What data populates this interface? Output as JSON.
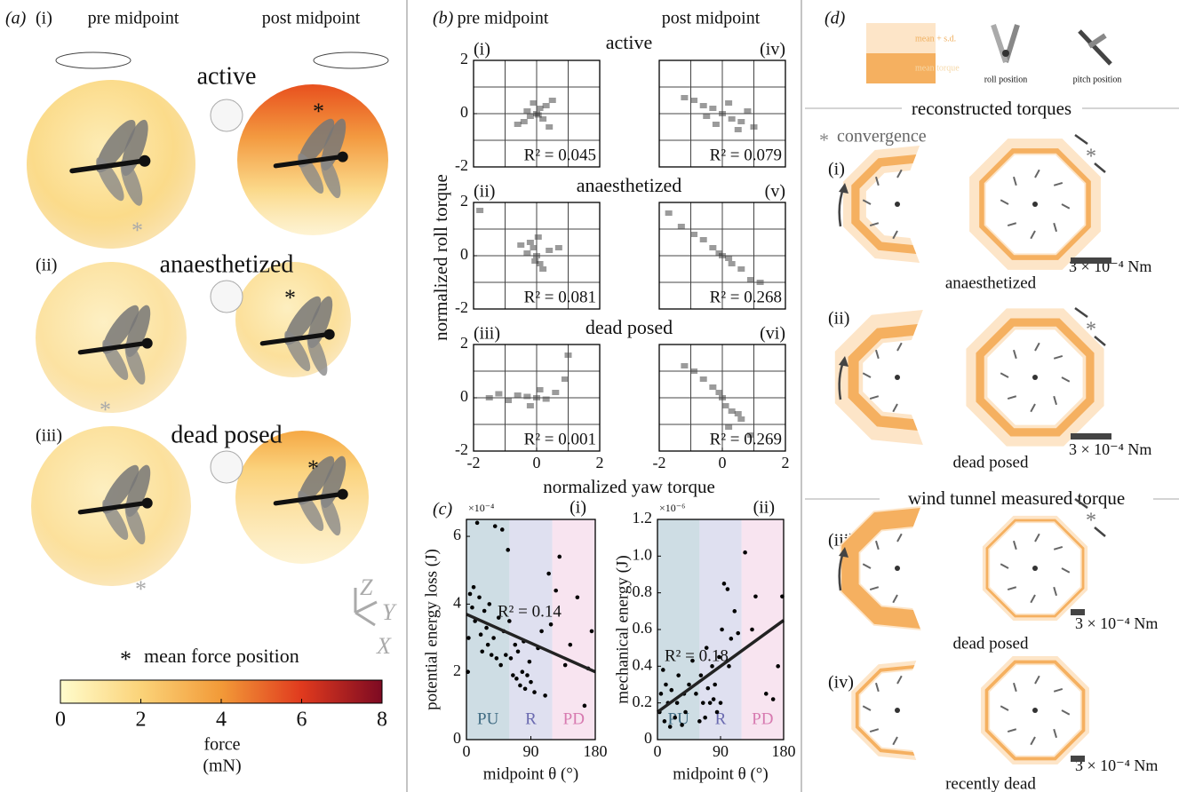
{
  "panel_a": {
    "label": "(a)",
    "pre": "pre midpoint",
    "post": "post midpoint",
    "rows": [
      {
        "label": "(i)",
        "title": "active"
      },
      {
        "label": "(ii)",
        "title": "anaesthetized"
      },
      {
        "label": "(iii)",
        "title": "dead posed"
      }
    ],
    "symbol": "*",
    "legend": "mean force position",
    "axes": [
      "Z",
      "Y",
      "X"
    ]
  },
  "panel_b": {
    "label": "(b)",
    "pre": "pre midpoint",
    "post": "post midpoint",
    "rows": [
      "active",
      "anaesthetized",
      "dead posed"
    ],
    "xlabel": "normalized yaw torque",
    "ylabel": "normalized roll torque"
  },
  "panel_c": {
    "label": "(c)"
  },
  "panel_d": {
    "label": "(d)",
    "legend": [
      "mean + s.d.",
      "mean torque"
    ],
    "icons": [
      "roll position",
      "pitch position"
    ],
    "sections": [
      "reconstructed torques",
      "wind tunnel measured torque"
    ],
    "symbol": "*",
    "convergence": "convergence",
    "rows": [
      {
        "label": "(i)",
        "name": "anaesthetized"
      },
      {
        "label": "(ii)",
        "name": "dead posed"
      },
      {
        "label": "(iii)",
        "name": "dead posed"
      },
      {
        "label": "(iv)",
        "name": "recently dead"
      }
    ],
    "scale": "3 × 10⁻⁴ Nm"
  },
  "chart_data": [
    {
      "type": "colorbar",
      "xlim": [
        0,
        8
      ],
      "xticks": [
        0,
        2,
        4,
        6,
        8
      ],
      "colors": [
        "#fffccc",
        "#fbd379",
        "#f29a38",
        "#e03a1e",
        "#7d0a22"
      ],
      "label": "force",
      "unit": "(mN)"
    },
    {
      "type": "hist2d",
      "label": "(i)",
      "annotation": "R² = 0.045",
      "xlim": [
        -2,
        2
      ],
      "ylim": [
        -2,
        2
      ],
      "yticks": [
        -2,
        0,
        2
      ],
      "xgrid": [
        -1,
        0,
        1
      ],
      "ygrid": [
        -1,
        0,
        1
      ],
      "points": {
        "x": [
          0,
          0.1,
          -0.2,
          0.3,
          -0.4,
          0.2,
          -0.1,
          0.5,
          -0.6,
          0.05,
          -0.3,
          0.4
        ],
        "y": [
          0,
          0.2,
          -0.1,
          0.3,
          -0.3,
          -0.2,
          0.4,
          0.5,
          -0.4,
          -0.05,
          0.1,
          -0.5
        ]
      }
    },
    {
      "type": "hist2d",
      "label": "(ii)",
      "annotation": "R² = 0.081",
      "xlim": [
        -2,
        2
      ],
      "ylim": [
        -2,
        2
      ],
      "yticks": [
        -2,
        0,
        2
      ],
      "xgrid": [
        -1,
        0,
        1
      ],
      "ygrid": [
        -1,
        0,
        1
      ],
      "points": {
        "x": [
          0,
          -0.1,
          0.1,
          -0.2,
          0.2,
          -0.3,
          0.05,
          -0.05,
          0.4,
          -0.5,
          0.7,
          -1.8
        ],
        "y": [
          0,
          0.3,
          -0.3,
          0.5,
          -0.5,
          0.1,
          0.7,
          -0.2,
          0.2,
          0.4,
          0.3,
          1.7
        ]
      }
    },
    {
      "type": "hist2d",
      "label": "(iii)",
      "annotation": "R² = 0.001",
      "xlim": [
        -2,
        2
      ],
      "ylim": [
        -2,
        2
      ],
      "xticks": [
        -2,
        0,
        2
      ],
      "yticks": [
        -2,
        0,
        2
      ],
      "xgrid": [
        -1,
        0,
        1
      ],
      "ygrid": [
        -1,
        0,
        1
      ],
      "points": {
        "x": [
          0,
          -0.3,
          -0.6,
          -0.9,
          0.3,
          0.6,
          -1.2,
          -0.2,
          0.1,
          0.9,
          -1.5,
          1.0
        ],
        "y": [
          0,
          0.05,
          0.1,
          -0.1,
          -0.05,
          0.2,
          0.15,
          -0.3,
          0.3,
          0.7,
          0.0,
          1.6
        ]
      }
    },
    {
      "type": "hist2d",
      "label": "(iv)",
      "annotation": "R² = 0.079",
      "xlim": [
        -2,
        2
      ],
      "ylim": [
        -2,
        2
      ],
      "xgrid": [
        -1,
        0,
        1
      ],
      "ygrid": [
        -1,
        0,
        1
      ],
      "points": {
        "x": [
          0,
          -0.3,
          0.3,
          -0.6,
          0.6,
          -0.9,
          0.2,
          -0.2,
          0.8,
          -1.2,
          0.5,
          -0.5,
          1.0
        ],
        "y": [
          0,
          0.2,
          -0.2,
          0.3,
          -0.3,
          0.5,
          0.4,
          -0.4,
          0.1,
          0.6,
          -0.6,
          -0.1,
          -0.5
        ]
      }
    },
    {
      "type": "hist2d",
      "label": "(v)",
      "annotation": "R² = 0.268",
      "xlim": [
        -2,
        2
      ],
      "ylim": [
        -2,
        2
      ],
      "xgrid": [
        -1,
        0,
        1
      ],
      "ygrid": [
        -1,
        0,
        1
      ],
      "points": {
        "x": [
          0,
          -0.3,
          0.3,
          -0.6,
          0.6,
          -0.9,
          0.9,
          -1.3,
          1.2,
          -0.1,
          0.2,
          -1.7
        ],
        "y": [
          0,
          0.3,
          -0.3,
          0.6,
          -0.5,
          0.8,
          -0.9,
          1.1,
          -1.0,
          0.1,
          -0.1,
          1.6
        ]
      }
    },
    {
      "type": "hist2d",
      "label": "(vi)",
      "annotation": "R² = 0.269",
      "xlim": [
        -2,
        2
      ],
      "ylim": [
        -2,
        2
      ],
      "xticks": [
        -2,
        0,
        2
      ],
      "xgrid": [
        -1,
        0,
        1
      ],
      "ygrid": [
        -1,
        0,
        1
      ],
      "points": {
        "x": [
          0,
          -0.3,
          0.3,
          -0.6,
          0.6,
          -0.9,
          0.1,
          0.2,
          -1.2,
          0.5,
          -0.1,
          0.9
        ],
        "y": [
          0,
          0.4,
          -0.5,
          0.7,
          -0.8,
          1.0,
          -0.3,
          -1.1,
          1.2,
          -0.6,
          0.2,
          -1.4
        ]
      }
    },
    {
      "type": "scatter",
      "label": "(i)",
      "annotation": "R² = 0.14",
      "exponent": "×10⁻⁴",
      "xlabel": "midpoint θ (°)",
      "ylabel": "potential energy loss (J)",
      "xlim": [
        0,
        180
      ],
      "ylim": [
        0,
        6.5
      ],
      "xticks": [
        0,
        90,
        180
      ],
      "yticks": [
        0,
        2,
        4,
        6
      ],
      "regions": [
        {
          "name": "PU",
          "from": 0,
          "to": 60,
          "color": "#b9cfd9",
          "label_color": "#3f6b82"
        },
        {
          "name": "R",
          "from": 60,
          "to": 120,
          "color": "#d2d3ea",
          "label_color": "#6a6ab0"
        },
        {
          "name": "PD",
          "from": 120,
          "to": 180,
          "color": "#f5d8ea",
          "label_color": "#d77ab0"
        }
      ],
      "points": {
        "x": [
          2,
          3,
          5,
          8,
          10,
          12,
          15,
          18,
          20,
          22,
          25,
          28,
          30,
          32,
          35,
          38,
          40,
          42,
          45,
          48,
          50,
          52,
          55,
          58,
          60,
          62,
          65,
          68,
          70,
          72,
          75,
          78,
          80,
          82,
          85,
          88,
          90,
          95,
          100,
          105,
          110,
          115,
          118,
          125,
          130,
          138,
          145,
          155,
          165,
          170,
          175
        ],
        "y": [
          2.0,
          3.0,
          4.3,
          3.9,
          4.5,
          3.5,
          6.4,
          4.2,
          3.1,
          2.6,
          3.8,
          3.3,
          2.8,
          4.0,
          2.5,
          3.0,
          6.3,
          2.4,
          3.6,
          2.2,
          6.2,
          3.2,
          2.5,
          5.6,
          3.5,
          2.4,
          1.9,
          2.8,
          1.8,
          2.6,
          1.6,
          2.0,
          2.9,
          1.5,
          1.9,
          2.3,
          1.7,
          1.4,
          2.7,
          3.2,
          1.3,
          4.9,
          3.4,
          4.4,
          5.4,
          2.2,
          2.8,
          4.2,
          1.0,
          2.1,
          3.2
        ]
      },
      "line": {
        "x": [
          0,
          180
        ],
        "y": [
          3.7,
          2.0
        ]
      }
    },
    {
      "type": "scatter",
      "label": "(ii)",
      "annotation": "R² = 0.18",
      "exponent": "×10⁻⁶",
      "xlabel": "midpoint θ (°)",
      "ylabel": "mechanical energy (J)",
      "xlim": [
        0,
        180
      ],
      "ylim": [
        0,
        1.2
      ],
      "xticks": [
        0,
        90,
        180
      ],
      "yticks": [
        0,
        0.2,
        0.4,
        0.6,
        0.8,
        {
          "value": 1,
          "label": "1.0"
        },
        1.2
      ],
      "regions": [
        {
          "name": "PU",
          "from": 0,
          "to": 60,
          "color": "#b9cfd9",
          "label_color": "#3f6b82"
        },
        {
          "name": "R",
          "from": 60,
          "to": 120,
          "color": "#d2d3ea",
          "label_color": "#6a6ab0"
        },
        {
          "name": "PD",
          "from": 120,
          "to": 180,
          "color": "#f5d8ea",
          "label_color": "#d77ab0"
        }
      ],
      "points": {
        "x": [
          3,
          5,
          8,
          10,
          12,
          15,
          18,
          20,
          25,
          28,
          30,
          35,
          38,
          40,
          45,
          50,
          55,
          60,
          62,
          65,
          68,
          70,
          72,
          75,
          78,
          80,
          82,
          85,
          88,
          90,
          92,
          95,
          100,
          102,
          105,
          110,
          115,
          125,
          135,
          140,
          155,
          165,
          172,
          178
        ],
        "y": [
          0.15,
          0.25,
          0.38,
          0.1,
          0.3,
          0.2,
          0.07,
          0.27,
          0.12,
          0.2,
          0.35,
          0.08,
          0.25,
          0.15,
          0.3,
          0.43,
          0.25,
          0.1,
          0.35,
          0.2,
          0.12,
          0.5,
          0.28,
          0.2,
          0.4,
          0.22,
          0.3,
          0.15,
          0.45,
          0.2,
          0.6,
          0.85,
          0.82,
          0.4,
          0.55,
          0.7,
          0.58,
          1.02,
          0.6,
          0.78,
          0.25,
          0.22,
          0.4,
          0.78
        ]
      },
      "line": {
        "x": [
          0,
          180
        ],
        "y": [
          0.15,
          0.65
        ]
      }
    }
  ]
}
